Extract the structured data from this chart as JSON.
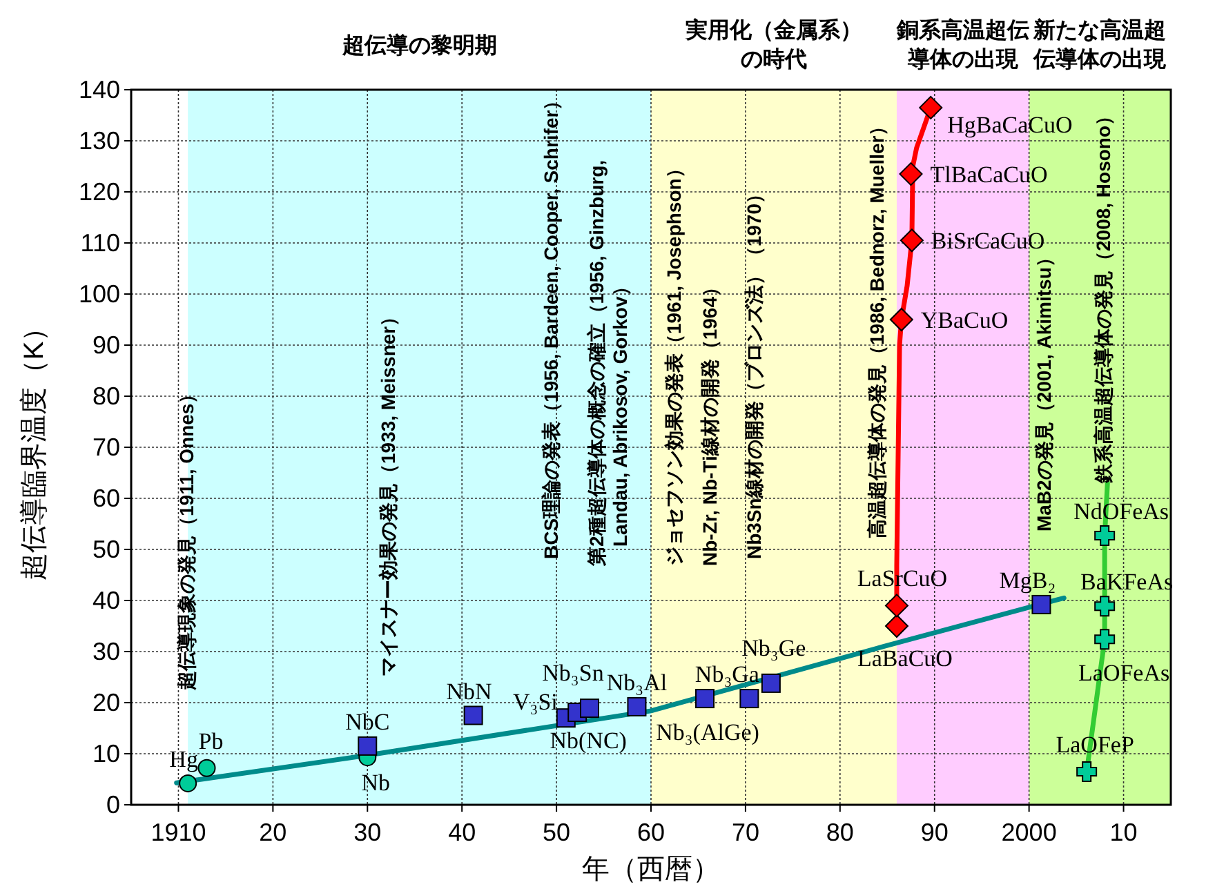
{
  "chart_data": {
    "type": "scatter",
    "xlabel": "年（西暦）",
    "ylabel": "超伝導臨界温度（K）",
    "xlim": [
      1905,
      2015
    ],
    "ylim": [
      0,
      140
    ],
    "xticks": [
      1910,
      {
        "value": 1920,
        "label": "20"
      },
      {
        "value": 1930,
        "label": "30"
      },
      {
        "value": 1940,
        "label": "40"
      },
      {
        "value": 1950,
        "label": "50"
      },
      {
        "value": 1960,
        "label": "60"
      },
      {
        "value": 1970,
        "label": "70"
      },
      {
        "value": 1980,
        "label": "80"
      },
      {
        "value": 1990,
        "label": "90"
      },
      2000,
      {
        "value": 2010,
        "label": "10"
      }
    ],
    "yticks": [
      0,
      10,
      20,
      30,
      40,
      50,
      60,
      70,
      80,
      90,
      100,
      110,
      120,
      130,
      140
    ],
    "grid": true,
    "bands": [
      {
        "axis": "x",
        "from": 1911,
        "to": 1960,
        "label": "超伝導の黎明期",
        "color": "#ccffff"
      },
      {
        "axis": "x",
        "from": 1960,
        "to": 1986,
        "label": "実用化（金属系）の時代",
        "color": "#ffffcc"
      },
      {
        "axis": "x",
        "from": 1986,
        "to": 2000,
        "label": "銅系高温超伝導体の出現",
        "color": "#ffccff"
      },
      {
        "axis": "x",
        "from": 2000,
        "to": 2015,
        "label": "新たな高温超伝導体の出現",
        "color": "#ccff99"
      }
    ],
    "series": [
      {
        "type": "line",
        "color": "#008b8b",
        "x": [
          1909.8,
          1930,
          1960,
          1984.6,
          2003.7
        ],
        "values": [
          4.3,
          9.7,
          18.4,
          31,
          40.5
        ]
      },
      {
        "type": "line",
        "color": "#ff0000",
        "x": [
          1986,
          1986,
          1986.3,
          1986.5,
          1987.1,
          1987.6,
          1987.7,
          1988.1,
          1989.6
        ],
        "values": [
          39,
          46.8,
          90,
          95,
          101.6,
          110.5,
          125,
          128.6,
          136.5
        ]
      },
      {
        "type": "line",
        "color": "#33cc33",
        "x": [
          2006.1,
          2008,
          2008,
          2008,
          2008.3
        ],
        "values": [
          6.5,
          32.4,
          38.9,
          52.7,
          63
        ]
      },
      {
        "marker": "circle",
        "color": "#00cc99",
        "x": [
          1911,
          1913,
          1930
        ],
        "values": [
          4.2,
          7.2,
          9.3
        ]
      },
      {
        "marker": "square",
        "color": "#3333cc",
        "x": [
          1930,
          1941.2,
          1951,
          1952.2,
          1953.5,
          1958.5,
          1965.7,
          1970.4,
          1972.7,
          2001.3
        ],
        "values": [
          11.5,
          17.5,
          17,
          18.1,
          18.9,
          19.2,
          20.8,
          20.8,
          23.8,
          39.2
        ]
      },
      {
        "marker": "diamond",
        "color": "#ff0000",
        "x": [
          1986,
          1986,
          1986.5,
          1987.6,
          1987.5,
          1989.6
        ],
        "values": [
          35,
          39,
          95,
          110.5,
          123.5,
          136.5
        ]
      },
      {
        "marker": "cross",
        "color": "#00cc99",
        "x": [
          2006.1,
          2008,
          2008,
          2008
        ],
        "values": [
          6.5,
          32.4,
          38.9,
          52.7
        ]
      }
    ],
    "annotations": [
      {
        "text": "Hg",
        "x": 1911,
        "y": 4.2
      },
      {
        "text": "Pb",
        "x": 1913,
        "y": 7.2
      },
      {
        "text": "Nb",
        "x": 1930,
        "y": 9.3
      },
      {
        "text": "NbC",
        "x": 1930,
        "y": 11.5
      },
      {
        "text": "NbN",
        "x": 1941.2,
        "y": 17.5
      },
      {
        "text": "V₃Si",
        "x": 1951,
        "y": 17
      },
      {
        "text": "Nb(NC)",
        "x": 1952.2,
        "y": 18.1
      },
      {
        "text": "Nb₃Sn",
        "x": 1953.5,
        "y": 18.9
      },
      {
        "text": "Nb₃Al",
        "x": 1958.5,
        "y": 19.2
      },
      {
        "text": "Nb₃(AlGe)",
        "x": 1965.7,
        "y": 20.8
      },
      {
        "text": "Nb₃Ga",
        "x": 1970.4,
        "y": 20.8
      },
      {
        "text": "Nb₃Ge",
        "x": 1972.7,
        "y": 23.8
      },
      {
        "text": "MgB₂",
        "x": 2001.3,
        "y": 39.2
      },
      {
        "text": "LaSrCuO",
        "x": 1986,
        "y": 39
      },
      {
        "text": "LaBaCuO",
        "x": 1986,
        "y": 35
      },
      {
        "text": "YBaCuO",
        "x": 1986.5,
        "y": 95
      },
      {
        "text": "BiSrCaCuO",
        "x": 1987.6,
        "y": 110.5
      },
      {
        "text": "TlBaCaCuO",
        "x": 1987.5,
        "y": 123.5
      },
      {
        "text": "HgBaCaCuO",
        "x": 1989.6,
        "y": 136.5
      },
      {
        "text": "NdOFeAs",
        "x": 2008,
        "y": 52.7
      },
      {
        "text": "BaKFeAs",
        "x": 2008,
        "y": 38.9
      },
      {
        "text": "LaOFeAs",
        "x": 2008,
        "y": 32.4
      },
      {
        "text": "LaOFeP",
        "x": 2006.1,
        "y": 6.5
      },
      "超伝導現象の発見（1911, Onnes）",
      "マイスナー効果の発見（1933, Meissner）",
      "BCS理論の発表（1956, Bardeen, Cooper, Schrifer）",
      "第2種超伝導体の概念の確立（1956, Ginzburg, Landau, Abrikosov, Gorkov）",
      "ジョセフソン効果の発表（1961, Josephson）",
      "Nb-Zr, Nb-Ti線材の開発（1964）",
      "Nb3Sn線材の開発（ブロンズ法）（1970）",
      "高温超伝導体の発見（1986, Bednorz, Mueller）",
      "MaB2の発見（2001, Akimitsu）",
      "鉄系高温超伝導体の発見（2008, Hosono）"
    ]
  }
}
